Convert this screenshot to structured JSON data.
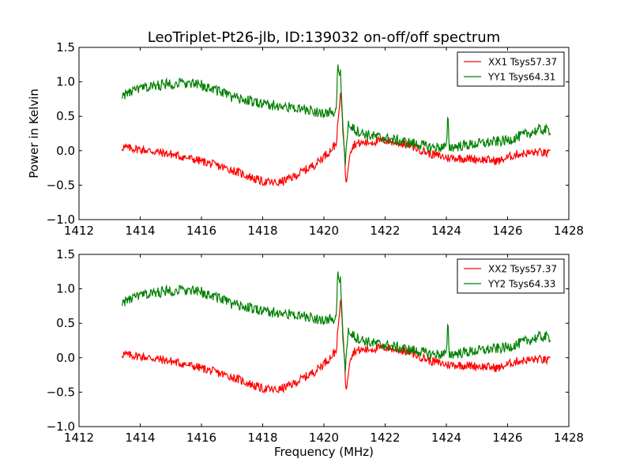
{
  "chart_data": [
    {
      "type": "line",
      "title": "LeoTriplet-Pt26-jlb, ID:139032 on-off/off spectrum",
      "xlabel": "",
      "ylabel": "Power in Kelvin",
      "xlim": [
        1412,
        1428
      ],
      "ylim": [
        -1.0,
        1.5
      ],
      "xticks": [
        "1412",
        "1414",
        "1416",
        "1418",
        "1420",
        "1422",
        "1424",
        "1426",
        "1428"
      ],
      "yticks": [
        "−1.0",
        "−0.5",
        "0.0",
        "0.5",
        "1.0",
        "1.5"
      ],
      "legend_position": "top-right",
      "series": [
        {
          "name": "XX1 Tsys57.37",
          "color": "#ff0000",
          "points": [
            [
              1413.4,
              0.05
            ],
            [
              1414,
              0.02
            ],
            [
              1415,
              -0.05
            ],
            [
              1416,
              -0.15
            ],
            [
              1417,
              -0.28
            ],
            [
              1418,
              -0.45
            ],
            [
              1418.5,
              -0.47
            ],
            [
              1419,
              -0.38
            ],
            [
              1419.7,
              -0.2
            ],
            [
              1420.2,
              0.0
            ],
            [
              1420.4,
              0.1
            ],
            [
              1420.55,
              0.85
            ],
            [
              1420.65,
              0.2
            ],
            [
              1420.72,
              -0.5
            ],
            [
              1420.85,
              0.0
            ],
            [
              1421,
              0.1
            ],
            [
              1422,
              0.15
            ],
            [
              1422.8,
              0.08
            ],
            [
              1423.5,
              -0.05
            ],
            [
              1424,
              -0.1
            ],
            [
              1425,
              -0.12
            ],
            [
              1425.7,
              -0.15
            ],
            [
              1426.3,
              -0.05
            ],
            [
              1427,
              -0.02
            ],
            [
              1427.4,
              -0.05
            ]
          ]
        },
        {
          "name": "YY1 Tsys64.31",
          "color": "#008000",
          "points": [
            [
              1413.4,
              0.8
            ],
            [
              1414,
              0.9
            ],
            [
              1415,
              0.98
            ],
            [
              1415.5,
              0.98
            ],
            [
              1416,
              0.95
            ],
            [
              1416.5,
              0.88
            ],
            [
              1417,
              0.78
            ],
            [
              1418,
              0.68
            ],
            [
              1419,
              0.62
            ],
            [
              1420,
              0.55
            ],
            [
              1420.4,
              0.55
            ],
            [
              1420.45,
              1.2
            ],
            [
              1420.55,
              1.1
            ],
            [
              1420.62,
              0.2
            ],
            [
              1420.7,
              -0.2
            ],
            [
              1420.8,
              0.45
            ],
            [
              1421,
              0.3
            ],
            [
              1421.5,
              0.22
            ],
            [
              1422,
              0.18
            ],
            [
              1423,
              0.1
            ],
            [
              1423.5,
              0.05
            ],
            [
              1424,
              0.05
            ],
            [
              1424.05,
              0.5
            ],
            [
              1424.1,
              0.05
            ],
            [
              1425,
              0.1
            ],
            [
              1426,
              0.15
            ],
            [
              1427,
              0.3
            ],
            [
              1427.4,
              0.3
            ]
          ]
        }
      ]
    },
    {
      "type": "line",
      "title": "",
      "xlabel": "Frequency (MHz)",
      "ylabel": "",
      "xlim": [
        1412,
        1428
      ],
      "ylim": [
        -1.0,
        1.5
      ],
      "xticks": [
        "1412",
        "1414",
        "1416",
        "1418",
        "1420",
        "1422",
        "1424",
        "1426",
        "1428"
      ],
      "yticks": [
        "−1.0",
        "−0.5",
        "0.0",
        "0.5",
        "1.0",
        "1.5"
      ],
      "legend_position": "top-right",
      "series": [
        {
          "name": "XX2 Tsys57.37",
          "color": "#ff0000",
          "points": [
            [
              1413.4,
              0.05
            ],
            [
              1414,
              0.02
            ],
            [
              1415,
              -0.05
            ],
            [
              1416,
              -0.15
            ],
            [
              1417,
              -0.28
            ],
            [
              1418,
              -0.45
            ],
            [
              1418.5,
              -0.47
            ],
            [
              1419,
              -0.38
            ],
            [
              1419.7,
              -0.2
            ],
            [
              1420.2,
              0.0
            ],
            [
              1420.4,
              0.1
            ],
            [
              1420.55,
              0.85
            ],
            [
              1420.65,
              0.2
            ],
            [
              1420.72,
              -0.5
            ],
            [
              1420.85,
              0.0
            ],
            [
              1421,
              0.1
            ],
            [
              1422,
              0.15
            ],
            [
              1422.8,
              0.08
            ],
            [
              1423.5,
              -0.05
            ],
            [
              1424,
              -0.1
            ],
            [
              1425,
              -0.12
            ],
            [
              1425.7,
              -0.15
            ],
            [
              1426.3,
              -0.05
            ],
            [
              1427,
              -0.02
            ],
            [
              1427.4,
              -0.05
            ]
          ]
        },
        {
          "name": "YY2 Tsys64.33",
          "color": "#008000",
          "points": [
            [
              1413.4,
              0.8
            ],
            [
              1414,
              0.9
            ],
            [
              1415,
              0.98
            ],
            [
              1415.5,
              0.98
            ],
            [
              1416,
              0.95
            ],
            [
              1416.5,
              0.88
            ],
            [
              1417,
              0.78
            ],
            [
              1418,
              0.68
            ],
            [
              1419,
              0.62
            ],
            [
              1420,
              0.55
            ],
            [
              1420.4,
              0.55
            ],
            [
              1420.45,
              1.2
            ],
            [
              1420.55,
              1.1
            ],
            [
              1420.62,
              0.2
            ],
            [
              1420.7,
              -0.2
            ],
            [
              1420.8,
              0.45
            ],
            [
              1421,
              0.3
            ],
            [
              1421.5,
              0.22
            ],
            [
              1422,
              0.18
            ],
            [
              1423,
              0.1
            ],
            [
              1423.5,
              0.05
            ],
            [
              1424,
              0.05
            ],
            [
              1424.05,
              0.5
            ],
            [
              1424.1,
              0.05
            ],
            [
              1425,
              0.1
            ],
            [
              1426,
              0.15
            ],
            [
              1427,
              0.3
            ],
            [
              1427.4,
              0.3
            ]
          ]
        }
      ]
    }
  ]
}
